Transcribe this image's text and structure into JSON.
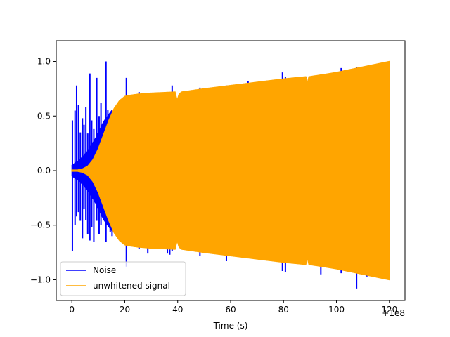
{
  "chart_data": {
    "type": "line",
    "xlabel": "Time (s)",
    "x_offset_label": "+1e8",
    "xlim": [
      -5.9,
      125.9
    ],
    "ylim": [
      -1.19,
      1.19
    ],
    "xticks": [
      0,
      20,
      40,
      60,
      80,
      100,
      120
    ],
    "xtick_labels": [
      "0",
      "20",
      "40",
      "60",
      "80",
      "100",
      "120"
    ],
    "yticks": [
      1.0,
      0.5,
      0.0,
      -0.5,
      -1.0
    ],
    "ytick_labels": [
      "1.0",
      "0.5",
      "0.0",
      "−0.5",
      "−1.0"
    ],
    "legend_position": "lower-left",
    "grid": false,
    "series": [
      {
        "name": "Noise",
        "color": "#0000ff",
        "x_range": [
          0,
          120
        ],
        "spikes": [
          [
            0.2,
            0.46,
            -0.74
          ],
          [
            1.2,
            0.55,
            -0.5
          ],
          [
            1.8,
            0.78,
            -0.42
          ],
          [
            2.5,
            0.6,
            -0.38
          ],
          [
            3.2,
            0.35,
            -0.46
          ],
          [
            4.0,
            0.48,
            -0.62
          ],
          [
            4.6,
            0.42,
            -0.35
          ],
          [
            5.3,
            0.58,
            -0.45
          ],
          [
            6.0,
            0.34,
            -0.58
          ],
          [
            6.8,
            0.89,
            -0.64
          ],
          [
            7.5,
            0.46,
            -0.52
          ],
          [
            8.3,
            0.38,
            -0.65
          ],
          [
            9.4,
            0.85,
            -0.46
          ],
          [
            10.3,
            0.5,
            -0.58
          ],
          [
            11.0,
            0.62,
            -0.5
          ],
          [
            12.9,
            1.0,
            -0.65
          ],
          [
            13.6,
            0.56,
            -0.5
          ],
          [
            14.5,
            0.5,
            -0.56
          ],
          [
            15.2,
            0.42,
            -0.6
          ],
          [
            20.6,
            0.85,
            -0.88
          ],
          [
            25.4,
            0.72,
            -0.72
          ],
          [
            28.7,
            0.65,
            -0.76
          ],
          [
            36.1,
            0.7,
            -0.76
          ],
          [
            37.0,
            0.68,
            -0.77
          ],
          [
            37.9,
            0.78,
            -0.74
          ],
          [
            48.4,
            0.76,
            -0.78
          ],
          [
            58.4,
            0.78,
            -0.83
          ],
          [
            66.6,
            0.82,
            -0.78
          ],
          [
            79.6,
            0.9,
            -0.92
          ],
          [
            80.7,
            0.86,
            -0.93
          ],
          [
            88.5,
            0.86,
            -0.82
          ],
          [
            94.1,
            0.88,
            -0.95
          ],
          [
            101.8,
            0.94,
            -0.94
          ],
          [
            107.6,
            0.95,
            -1.08
          ],
          [
            111.5,
            0.96,
            -0.97
          ]
        ],
        "noise_band": [
          [
            0,
            0.05
          ],
          [
            3,
            0.1
          ],
          [
            6,
            0.18
          ],
          [
            9,
            0.3
          ],
          [
            12,
            0.45
          ],
          [
            15,
            0.55
          ]
        ]
      },
      {
        "name": "unwhitened signal",
        "color": "#ffa500",
        "x_range": [
          0,
          120
        ],
        "envelope": [
          [
            0,
            0.0
          ],
          [
            2,
            0.005
          ],
          [
            4,
            0.015
          ],
          [
            6,
            0.04
          ],
          [
            8,
            0.1
          ],
          [
            10,
            0.2
          ],
          [
            12,
            0.33
          ],
          [
            14,
            0.46
          ],
          [
            16,
            0.57
          ],
          [
            18,
            0.64
          ],
          [
            20,
            0.68
          ],
          [
            22,
            0.69
          ],
          [
            25,
            0.7
          ],
          [
            30,
            0.71
          ],
          [
            39,
            0.72
          ],
          [
            39.8,
            0.64
          ],
          [
            40.5,
            0.7
          ],
          [
            41.5,
            0.72
          ],
          [
            50,
            0.75
          ],
          [
            60,
            0.78
          ],
          [
            70,
            0.81
          ],
          [
            80,
            0.84
          ],
          [
            88.4,
            0.86
          ],
          [
            89,
            0.8
          ],
          [
            89.6,
            0.86
          ],
          [
            95,
            0.88
          ],
          [
            100,
            0.9
          ],
          [
            110,
            0.95
          ],
          [
            120,
            1.0
          ]
        ]
      }
    ]
  }
}
